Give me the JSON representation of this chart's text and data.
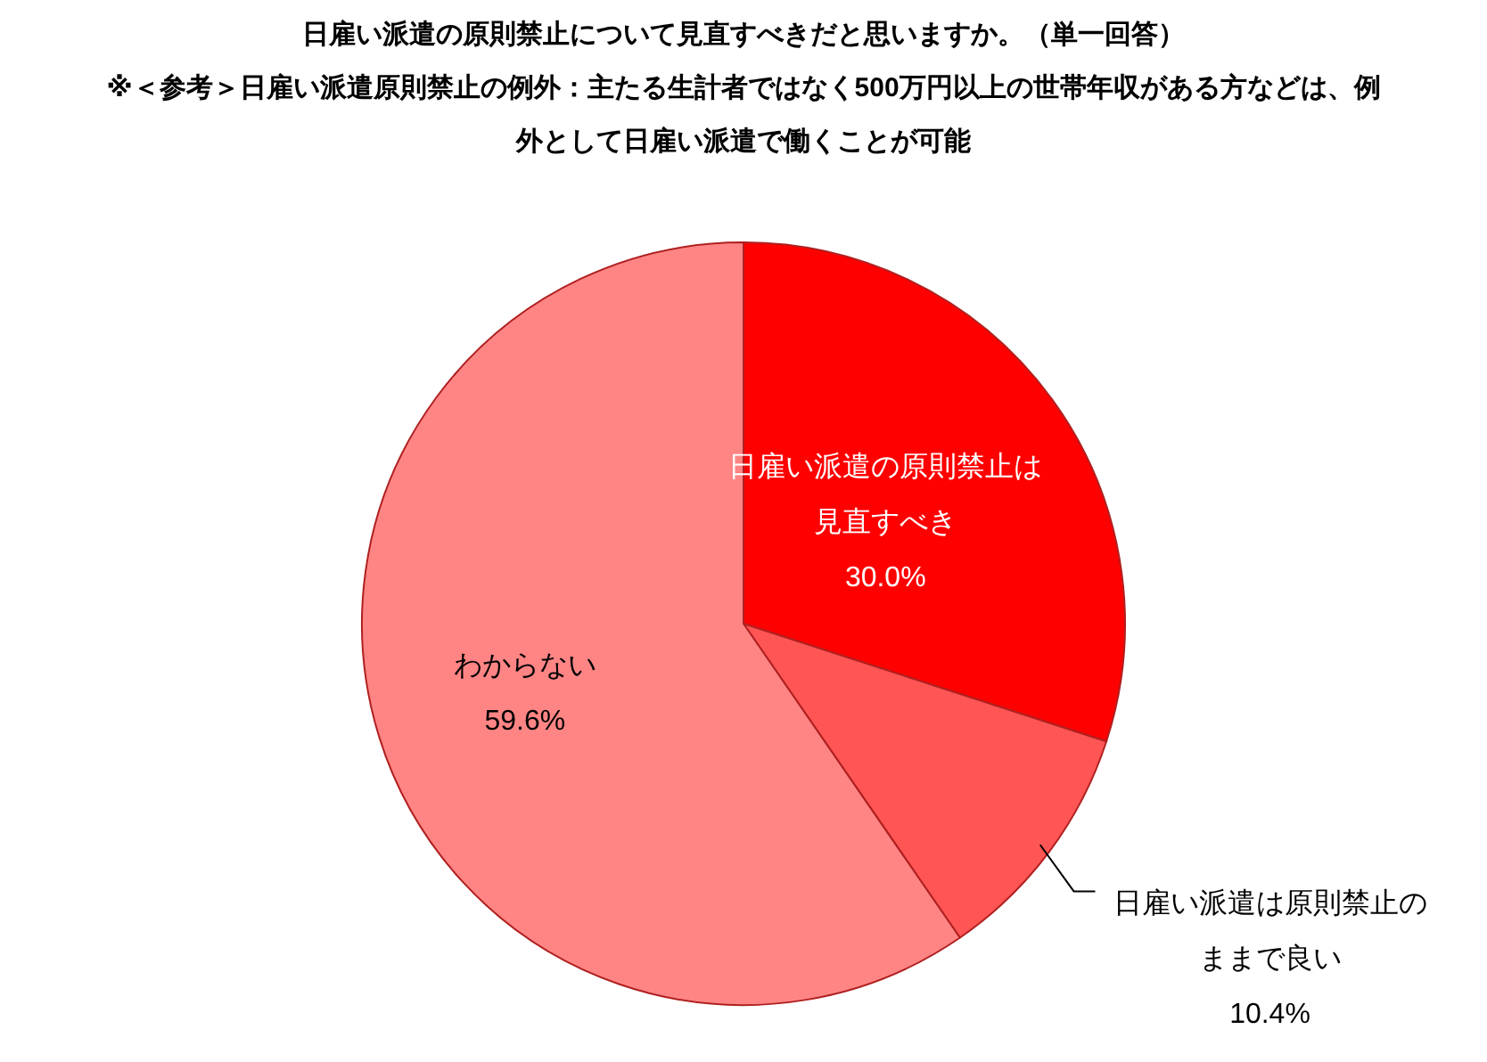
{
  "chart_data": {
    "type": "pie",
    "title": "日雇い派遣の原則禁止について見直すべきだと思いますか。（単一回答）",
    "subtitle": "※＜参考＞日雇い派遣原則禁止の例外：主たる生計者ではなく500万円以上の世帯年収がある方などは、例外として日雇い派遣で働くことが可能",
    "categories": [
      "日雇い派遣の原則禁止は見直すべき",
      "日雇い派遣は原則禁止のままで良い",
      "わからない"
    ],
    "values": [
      30.0,
      10.4,
      59.6
    ],
    "value_labels": [
      "30.0%",
      "10.4%",
      "59.6%"
    ],
    "colors": [
      "#ff0000",
      "#ff5555",
      "#ff8585"
    ]
  }
}
